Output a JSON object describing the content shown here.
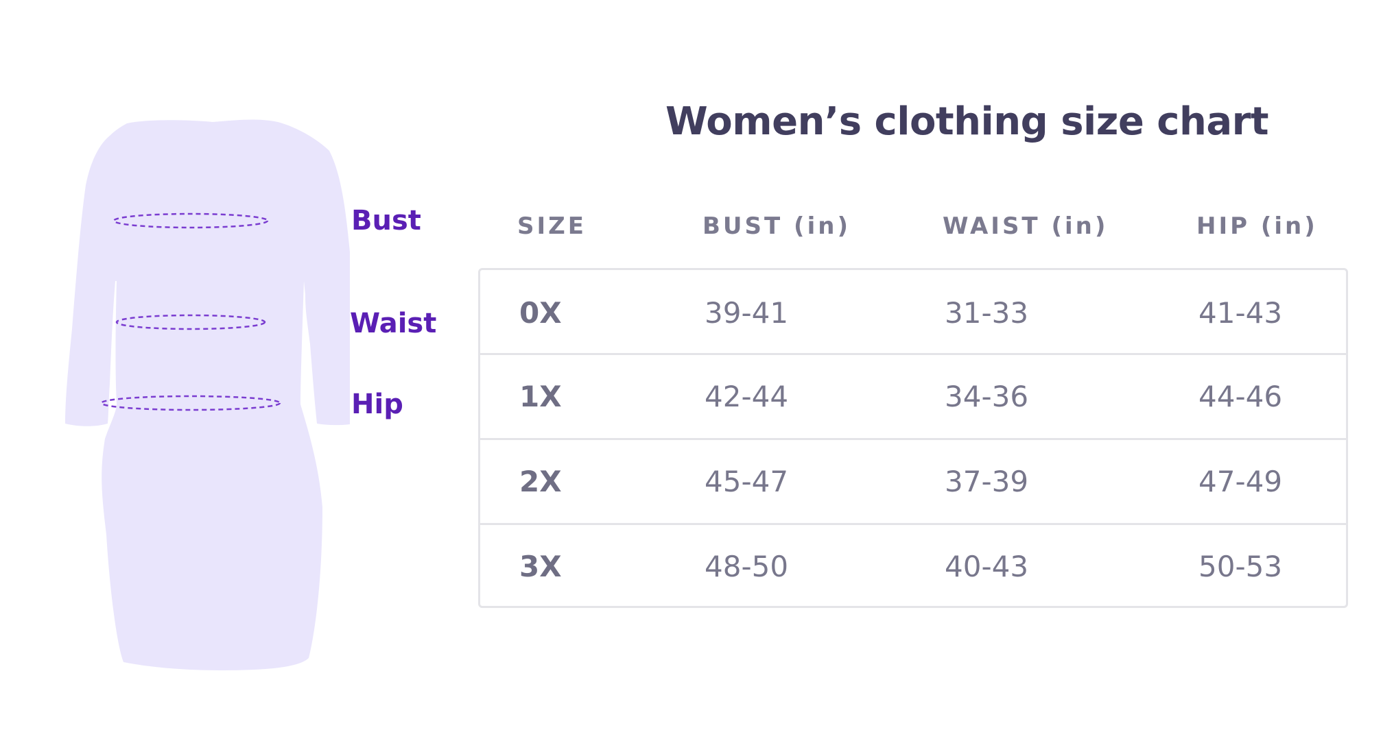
{
  "title": "Women’s clothing size chart",
  "measure_labels": {
    "bust": "Bust",
    "waist": "Waist",
    "hip": "Hip"
  },
  "table": {
    "headers": [
      "SIZE",
      "BUST (in)",
      "WAIST (in)",
      "HIP (in)"
    ],
    "rows": [
      [
        "0X",
        "39-41",
        "31-33",
        "41-43"
      ],
      [
        "1X",
        "42-44",
        "34-36",
        "44-46"
      ],
      [
        "2X",
        "45-47",
        "37-39",
        "47-49"
      ],
      [
        "3X",
        "48-50",
        "40-43",
        "50-53"
      ]
    ]
  },
  "colors": {
    "accent": "#5a1fb4",
    "title": "#413e5e",
    "header": "#7b7a8f",
    "cell_text": "#78778c",
    "border": "#e4e4e8",
    "dress_fill": "#e9e5fc",
    "measure_line": "#7a3cd0"
  },
  "icons": {
    "dress": "dress-silhouette-icon"
  }
}
